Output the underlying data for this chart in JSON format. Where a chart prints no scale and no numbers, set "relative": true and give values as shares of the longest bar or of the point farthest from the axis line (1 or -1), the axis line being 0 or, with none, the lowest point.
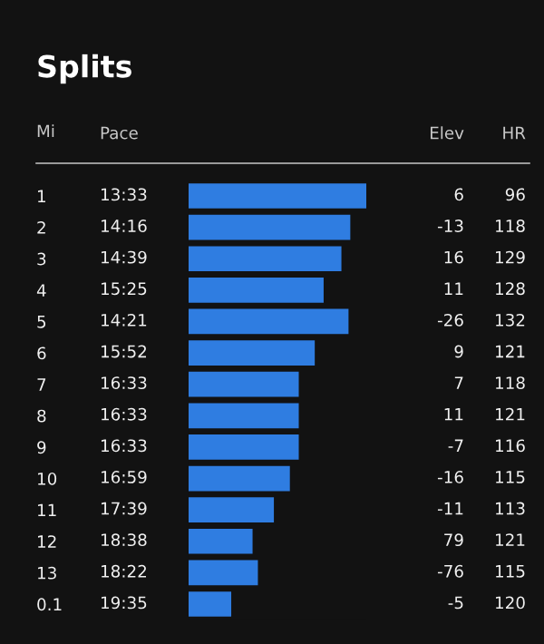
{
  "chart_data": [
    {
      "type": "bar",
      "orientation": "horizontal",
      "relative": true,
      "title": "Splits",
      "ylabel": "Mi",
      "color": "#2f7de1",
      "categories": [
        "1",
        "2",
        "3",
        "4",
        "5",
        "6",
        "7",
        "8",
        "9",
        "10",
        "11",
        "12",
        "13",
        "0.1"
      ],
      "values": [
        1,
        0.91,
        0.86,
        0.76,
        0.9,
        0.71,
        0.62,
        0.62,
        0.62,
        0.57,
        0.48,
        0.36,
        0.39,
        0.24
      ]
    },
    {
      "type": "other",
      "categories": [
        "Pace",
        "Elev",
        "HR"
      ],
      "cells": [
        [
          "13:33",
          "6",
          "96"
        ],
        [
          "14:16",
          "-13",
          "118"
        ],
        [
          "14:39",
          "16",
          "129"
        ],
        [
          "15:25",
          "11",
          "128"
        ],
        [
          "14:21",
          "-26",
          "132"
        ],
        [
          "15:52",
          "9",
          "121"
        ],
        [
          "16:33",
          "7",
          "118"
        ],
        [
          "16:33",
          "11",
          "121"
        ],
        [
          "16:33",
          "-7",
          "116"
        ],
        [
          "16:59",
          "-16",
          "115"
        ],
        [
          "17:39",
          "-11",
          "113"
        ],
        [
          "18:38",
          "79",
          "121"
        ],
        [
          "18:22",
          "-76",
          "115"
        ],
        [
          "19:35",
          "-5",
          "120"
        ]
      ]
    }
  ]
}
